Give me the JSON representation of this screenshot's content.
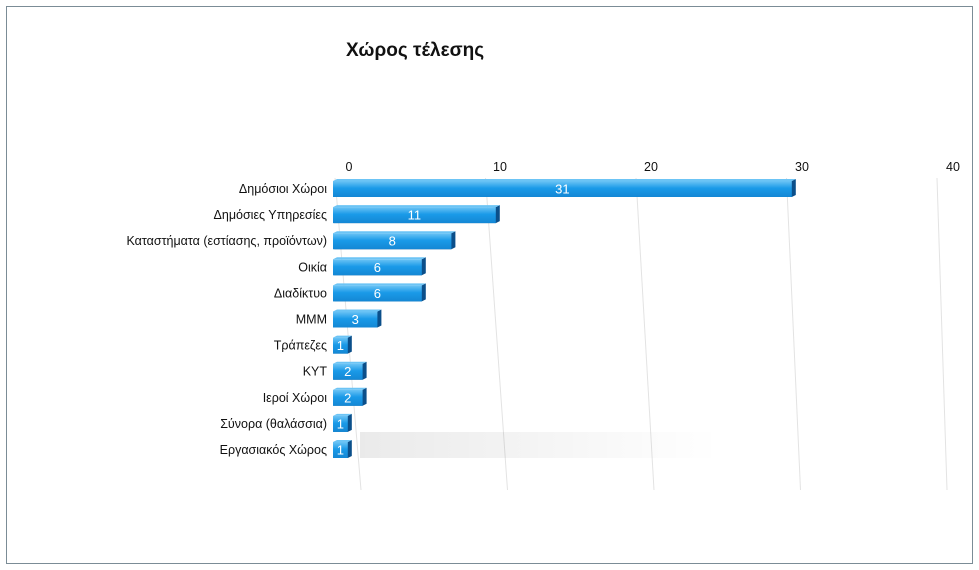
{
  "chart_data": {
    "type": "bar",
    "orientation": "horizontal",
    "title": "Χώρος τέλεσης",
    "categories": [
      "Δημόσιοι Χώροι",
      "Δημόσιες Υπηρεσίες",
      "Καταστήματα (εστίασης, προϊόντων)",
      "Οικία",
      "Διαδίκτυο",
      "ΜΜΜ",
      "Τράπεζες",
      "ΚΥΤ",
      "Ιεροί Χώροι",
      "Σύνορα (θαλάσσια)",
      "Εργασιακός Χώρος"
    ],
    "values": [
      31,
      11,
      8,
      6,
      6,
      3,
      1,
      2,
      2,
      1,
      1
    ],
    "xlim": [
      0,
      40
    ],
    "xticks": [
      0,
      10,
      20,
      30,
      40
    ],
    "grid": true,
    "xlabel": "",
    "ylabel": "",
    "colors": {
      "bar": "#1a9ae8",
      "bar_dark": "#0b4f8a",
      "bar_top": "#6cc4f5",
      "grid": "#e3e3e3"
    }
  }
}
